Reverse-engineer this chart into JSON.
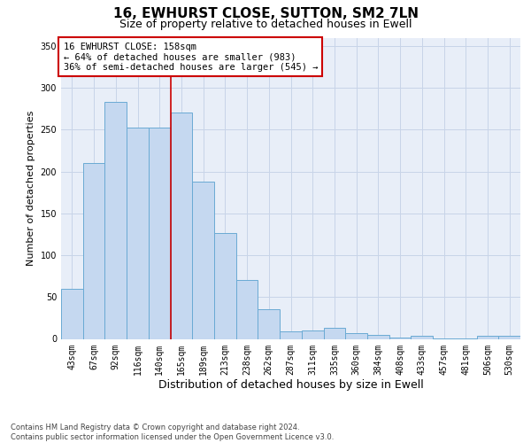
{
  "title": "16, EWHURST CLOSE, SUTTON, SM2 7LN",
  "subtitle": "Size of property relative to detached houses in Ewell",
  "xlabel": "Distribution of detached houses by size in Ewell",
  "ylabel": "Number of detached properties",
  "footer_line1": "Contains HM Land Registry data © Crown copyright and database right 2024.",
  "footer_line2": "Contains public sector information licensed under the Open Government Licence v3.0.",
  "categories": [
    "43sqm",
    "67sqm",
    "92sqm",
    "116sqm",
    "140sqm",
    "165sqm",
    "189sqm",
    "213sqm",
    "238sqm",
    "262sqm",
    "287sqm",
    "311sqm",
    "335sqm",
    "360sqm",
    "384sqm",
    "408sqm",
    "433sqm",
    "457sqm",
    "481sqm",
    "506sqm",
    "530sqm"
  ],
  "values": [
    60,
    210,
    283,
    252,
    252,
    271,
    188,
    127,
    70,
    35,
    9,
    10,
    13,
    7,
    5,
    2,
    4,
    1,
    1,
    4,
    4
  ],
  "bar_color": "#c5d8f0",
  "bar_edge_color": "#6aaad4",
  "bar_edge_width": 0.7,
  "vline_x": 4.5,
  "vline_color": "#cc0000",
  "annotation_text_line1": "16 EWHURST CLOSE: 158sqm",
  "annotation_text_line2": "← 64% of detached houses are smaller (983)",
  "annotation_text_line3": "36% of semi-detached houses are larger (545) →",
  "annotation_box_color": "#ffffff",
  "annotation_box_edge": "#cc0000",
  "ylim": [
    0,
    360
  ],
  "yticks": [
    0,
    50,
    100,
    150,
    200,
    250,
    300,
    350
  ],
  "grid_color": "#c8d4e8",
  "bg_color": "#e8eef8",
  "title_fontsize": 11,
  "subtitle_fontsize": 9,
  "ylabel_fontsize": 8,
  "xlabel_fontsize": 9,
  "tick_fontsize": 7,
  "annotation_fontsize": 7.5,
  "footer_fontsize": 6
}
